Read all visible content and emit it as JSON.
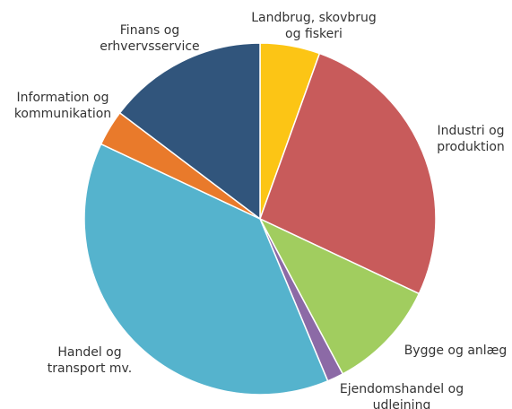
{
  "chart_data": {
    "type": "pie",
    "title": "",
    "start_angle_deg": 0,
    "direction": "clockwise",
    "slices": [
      {
        "name": "Landbrug, skovbrug og fiskeri",
        "lines": [
          "Landbrug, skovbrug",
          "og fiskeri"
        ],
        "value": 5.5,
        "color": "#fcc515"
      },
      {
        "name": "Industri og produktion",
        "lines": [
          "Industri og",
          "produktion"
        ],
        "value": 26.5,
        "color": "#c85b5b"
      },
      {
        "name": "Bygge og anlæg",
        "lines": [
          "Bygge og anlæg"
        ],
        "value": 10.2,
        "color": "#a1cd5f"
      },
      {
        "name": "Ejendomshandel og udlejning",
        "lines": [
          "Ejendomshandel og",
          "udlejning"
        ],
        "value": 1.5,
        "color": "#8c6aa6"
      },
      {
        "name": "Handel og transport mv.",
        "lines": [
          "Handel og",
          "transport mv."
        ],
        "value": 38.3,
        "color": "#55b3cd"
      },
      {
        "name": "Information og kommunikation",
        "lines": [
          "Information og",
          "kommunikation"
        ],
        "value": 3.3,
        "color": "#e97a2b"
      },
      {
        "name": "Finans og erhvervsservice",
        "lines": [
          "Finans og",
          "erhvervsservice"
        ],
        "value": 14.7,
        "color": "#31557c"
      }
    ]
  }
}
